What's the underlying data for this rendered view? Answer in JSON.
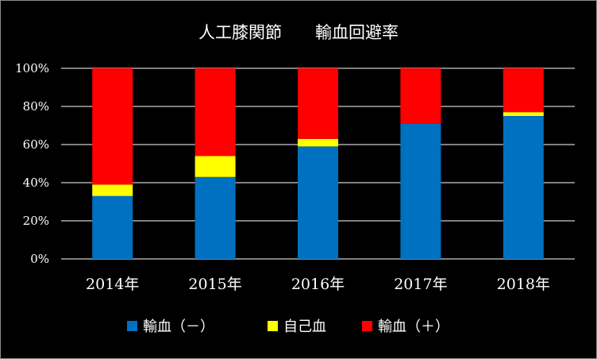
{
  "chart_data": {
    "type": "bar",
    "stacked": true,
    "normalized": true,
    "title": "人工膝関節　　輸血回避率",
    "categories": [
      "2014年",
      "2015年",
      "2016年",
      "2017年",
      "2018年"
    ],
    "series": [
      {
        "name": "輸血（－）",
        "color": "#0070C0",
        "values": [
          33,
          43,
          59,
          71,
          75
        ]
      },
      {
        "name": "自己血",
        "color": "#FFFF00",
        "values": [
          6,
          11,
          4,
          0,
          2
        ]
      },
      {
        "name": "輸血（＋）",
        "color": "#FF0000",
        "values": [
          61,
          46,
          37,
          29,
          23
        ]
      }
    ],
    "ylim": [
      0,
      100
    ],
    "yticks": [
      "0%",
      "20%",
      "40%",
      "60%",
      "80%",
      "100%"
    ],
    "grid": true,
    "legend_position": "bottom"
  }
}
